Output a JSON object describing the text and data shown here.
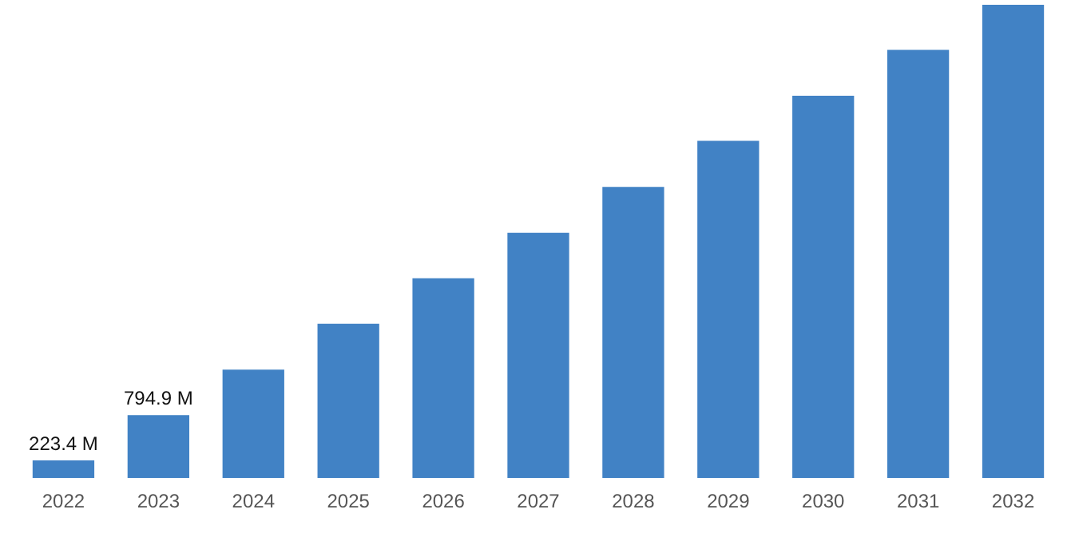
{
  "chart_data": {
    "type": "bar",
    "categories": [
      "2022",
      "2023",
      "2024",
      "2025",
      "2026",
      "2027",
      "2028",
      "2029",
      "2030",
      "2031",
      "2032"
    ],
    "values": [
      223.4,
      794.9,
      1370,
      1950,
      2525,
      3100,
      3680,
      4260,
      4830,
      5410,
      5980
    ],
    "value_labels": [
      "223.4 M",
      "794.9 M",
      null,
      null,
      null,
      null,
      null,
      null,
      null,
      null,
      null
    ],
    "color": "#4182c5",
    "relative": false,
    "grid": false,
    "legend": false
  }
}
